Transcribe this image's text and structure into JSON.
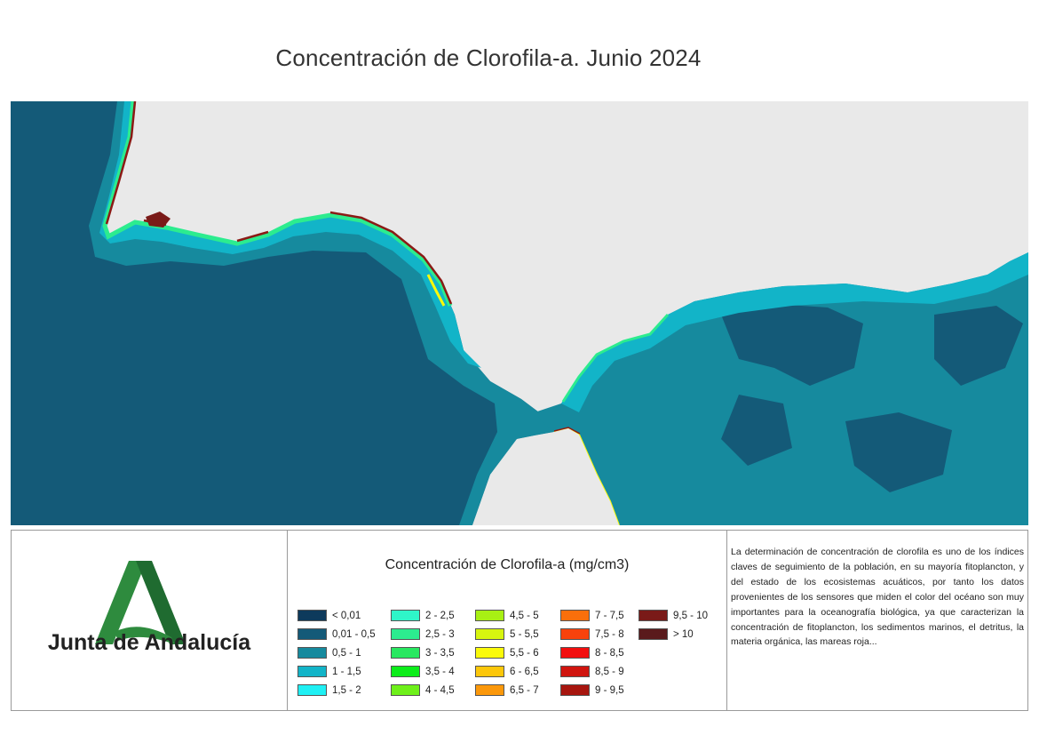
{
  "title": "Concentración de Clorofila-a. Junio 2024",
  "organization": "Junta de Andalucía",
  "legend": {
    "title": "Concentración de Clorofila-a (mg/cm3)",
    "columns": [
      [
        {
          "label": "< 0,01",
          "color": "#0d3a5c"
        },
        {
          "label": "0,01 - 0,5",
          "color": "#145a78"
        },
        {
          "label": "0,5 - 1",
          "color": "#168a9e"
        },
        {
          "label": "1 - 1,5",
          "color": "#12b4c8"
        },
        {
          "label": "1,5 - 2",
          "color": "#1ff0f4"
        }
      ],
      [
        {
          "label": "2 - 2,5",
          "color": "#2ff5c8"
        },
        {
          "label": "2,5 - 3",
          "color": "#2cec8f"
        },
        {
          "label": "3 - 3,5",
          "color": "#28e860"
        },
        {
          "label": "3,5 - 4",
          "color": "#0ced1a"
        },
        {
          "label": "4 - 4,5",
          "color": "#6ef01a"
        }
      ],
      [
        {
          "label": "4,5 - 5",
          "color": "#a8f014"
        },
        {
          "label": "5 - 5,5",
          "color": "#d7f50f"
        },
        {
          "label": "5,5 - 6",
          "color": "#fafa0a"
        },
        {
          "label": "6 - 6,5",
          "color": "#fcc70a"
        },
        {
          "label": "6,5 - 7",
          "color": "#fb980b"
        }
      ],
      [
        {
          "label": "7 - 7,5",
          "color": "#fa6f0b"
        },
        {
          "label": "7,5 - 8",
          "color": "#f8420c"
        },
        {
          "label": "8 - 8,5",
          "color": "#f20f0f"
        },
        {
          "label": "8,5 - 9",
          "color": "#d0150f"
        },
        {
          "label": "9 - 9,5",
          "color": "#a7160f"
        }
      ],
      [
        {
          "label": "9,5 - 10",
          "color": "#7a1a18"
        },
        {
          "label": "> 10",
          "color": "#5a1a1c"
        }
      ]
    ]
  },
  "description": "La determinación de concentración de clorofila es uno de los índices claves de seguimiento de la población, en su mayoría fitoplancton, y del estado de los ecosistemas acuáticos, por tanto los datos provenientes de los sensores que miden el color del océano son muy importantes para la oceanografía biológica, ya que caracterizan la concentración de fitoplancton, los sedimentos marinos, el detritus, la materia orgánica, las mareas roja...",
  "colors": {
    "land": "#e9e9e9",
    "ocean_deep": "#145a78",
    "ocean_mid": "#168a9e",
    "ocean_shallow": "#12b4c8",
    "logo_green": "#2e8b3e",
    "logo_dark_green": "#1f6b30"
  },
  "icons": [
    "junta-de-andalucia-logo"
  ]
}
